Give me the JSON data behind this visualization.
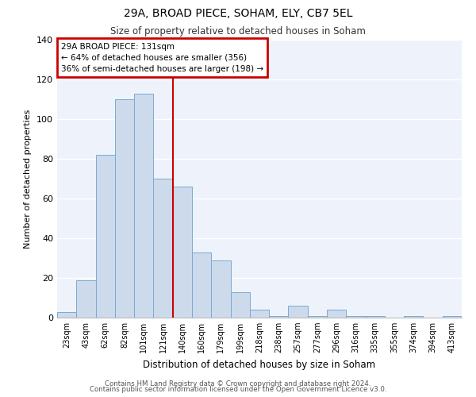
{
  "title": "29A, BROAD PIECE, SOHAM, ELY, CB7 5EL",
  "subtitle": "Size of property relative to detached houses in Soham",
  "xlabel": "Distribution of detached houses by size in Soham",
  "ylabel": "Number of detached properties",
  "bar_labels": [
    "23sqm",
    "43sqm",
    "62sqm",
    "82sqm",
    "101sqm",
    "121sqm",
    "140sqm",
    "160sqm",
    "179sqm",
    "199sqm",
    "218sqm",
    "238sqm",
    "257sqm",
    "277sqm",
    "296sqm",
    "316sqm",
    "335sqm",
    "355sqm",
    "374sqm",
    "394sqm",
    "413sqm"
  ],
  "bar_values": [
    3,
    19,
    82,
    110,
    113,
    70,
    66,
    33,
    29,
    13,
    4,
    1,
    6,
    1,
    4,
    1,
    1,
    0,
    1,
    0,
    1
  ],
  "bar_color": "#ccdaec",
  "bar_edge_color": "#7aaad0",
  "vline_x": 5.5,
  "vline_color": "#cc0000",
  "ylim": [
    0,
    140
  ],
  "yticks": [
    0,
    20,
    40,
    60,
    80,
    100,
    120,
    140
  ],
  "annotation_title": "29A BROAD PIECE: 131sqm",
  "annotation_line1": "← 64% of detached houses are smaller (356)",
  "annotation_line2": "36% of semi-detached houses are larger (198) →",
  "annotation_box_color": "#cc0000",
  "footer_line1": "Contains HM Land Registry data © Crown copyright and database right 2024.",
  "footer_line2": "Contains public sector information licensed under the Open Government Licence v3.0.",
  "background_color": "#eef2fa"
}
